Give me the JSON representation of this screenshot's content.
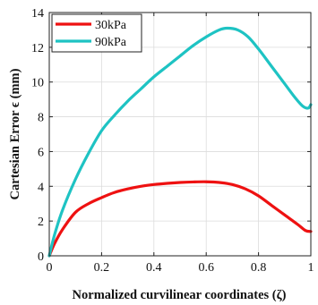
{
  "chart_data": {
    "type": "line",
    "xlabel": "Normalized curvilinear coordinates (ζ)",
    "ylabel": "Cartesian Error ϵ (mm)",
    "xlim": [
      0,
      1
    ],
    "ylim": [
      0,
      14
    ],
    "xticks": [
      "0",
      "0.2",
      "0.4",
      "0.6",
      "0.8",
      "1"
    ],
    "yticks": [
      "0",
      "2",
      "4",
      "6",
      "8",
      "10",
      "12",
      "14"
    ],
    "grid": true,
    "legend_position": "top-left",
    "series": [
      {
        "name": "30kPa",
        "color": "#ee1111",
        "x": [
          0,
          0.02,
          0.05,
          0.1,
          0.15,
          0.2,
          0.25,
          0.3,
          0.35,
          0.4,
          0.45,
          0.5,
          0.55,
          0.6,
          0.65,
          0.7,
          0.75,
          0.8,
          0.85,
          0.9,
          0.95,
          0.98,
          1.0
        ],
        "y": [
          0,
          0.7,
          1.5,
          2.5,
          3.0,
          3.35,
          3.65,
          3.85,
          4.0,
          4.1,
          4.17,
          4.22,
          4.25,
          4.26,
          4.22,
          4.1,
          3.85,
          3.45,
          2.9,
          2.35,
          1.8,
          1.45,
          1.4
        ]
      },
      {
        "name": "90kPa",
        "color": "#1ec3c3",
        "x": [
          0,
          0.02,
          0.05,
          0.1,
          0.15,
          0.2,
          0.25,
          0.3,
          0.35,
          0.4,
          0.45,
          0.5,
          0.55,
          0.6,
          0.65,
          0.68,
          0.72,
          0.76,
          0.8,
          0.85,
          0.9,
          0.94,
          0.97,
          0.99,
          1.0
        ],
        "y": [
          0,
          1.2,
          2.6,
          4.4,
          5.9,
          7.2,
          8.1,
          8.9,
          9.6,
          10.3,
          10.9,
          11.5,
          12.1,
          12.6,
          13.0,
          13.1,
          13.0,
          12.6,
          11.9,
          10.9,
          9.9,
          9.1,
          8.6,
          8.5,
          8.7
        ]
      }
    ]
  }
}
